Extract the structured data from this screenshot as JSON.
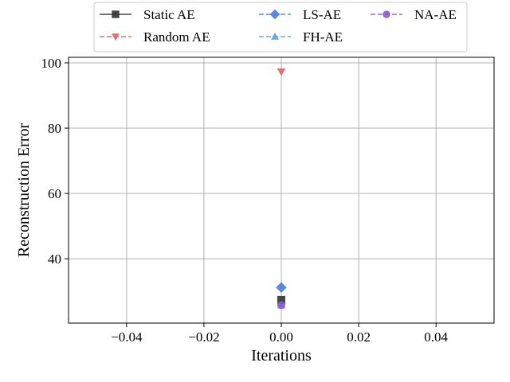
{
  "chart_data": {
    "type": "scatter",
    "xlabel": "Iterations",
    "ylabel": "Reconstruction Error",
    "xlim": [
      -0.055,
      0.055
    ],
    "ylim": [
      20.3,
      101.7
    ],
    "xticks": [
      -0.04,
      -0.02,
      0.0,
      0.02,
      0.04
    ],
    "xtick_labels": [
      "−0.04",
      "−0.02",
      "0.00",
      "0.02",
      "0.04"
    ],
    "yticks": [
      40,
      60,
      80,
      100
    ],
    "ytick_labels": [
      "40",
      "60",
      "80",
      "100"
    ],
    "grid": true,
    "legend_position": "top-center, above plot, 3 columns",
    "series": [
      {
        "name": "Static AE",
        "x": [
          0.0
        ],
        "y": [
          27.4
        ],
        "color": "#333333",
        "marker": "square",
        "line": "solid"
      },
      {
        "name": "Random AE",
        "x": [
          0.0
        ],
        "y": [
          97.3
        ],
        "color": "#e06666",
        "marker": "triangle-down",
        "line": "dashed"
      },
      {
        "name": "LS-AE",
        "x": [
          0.0
        ],
        "y": [
          31.2
        ],
        "color": "#4a7fdc",
        "marker": "diamond",
        "line": "dashed"
      },
      {
        "name": "FH-AE",
        "x": [
          0.0
        ],
        "y": [
          25.8
        ],
        "color": "#5aa8dc",
        "marker": "triangle-up",
        "line": "dashed"
      },
      {
        "name": "NA-AE",
        "x": [
          0.0
        ],
        "y": [
          25.8
        ],
        "color": "#8a5ccc",
        "marker": "circle",
        "line": "dashed"
      }
    ]
  }
}
